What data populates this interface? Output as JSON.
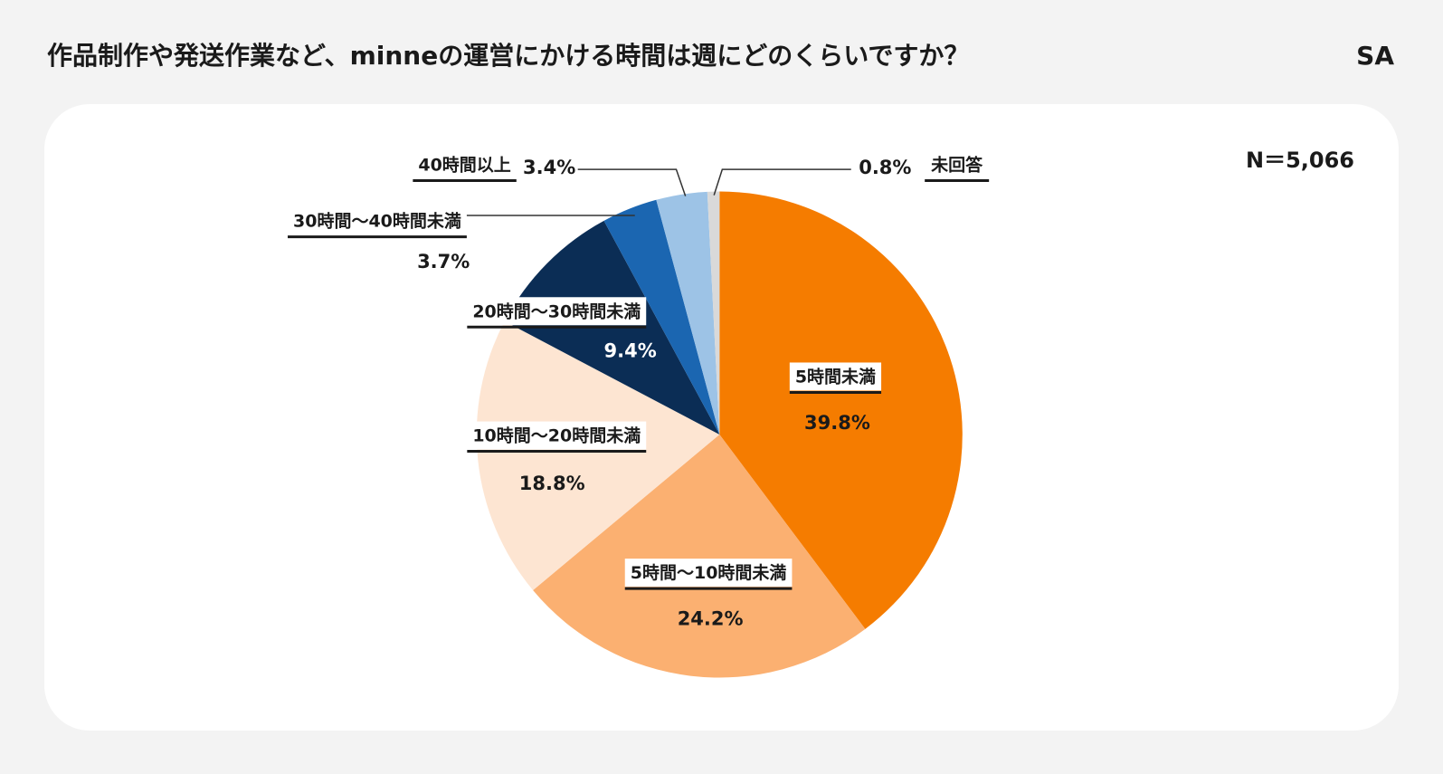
{
  "chart_data": {
    "type": "pie",
    "title": "作品制作や発送作業など、minneの運営にかける時間は週にどのくらいですか？",
    "tag": "SA",
    "note": "N＝5,066",
    "categories": [
      "5時間未満",
      "5時間～10時間未満",
      "10時間～20時間未満",
      "20時間～30時間未満",
      "30時間～40時間未満",
      "40時間以上",
      "未回答"
    ],
    "values": [
      39.8,
      24.2,
      18.8,
      9.4,
      3.7,
      3.4,
      0.8
    ],
    "value_labels": [
      "39.8%",
      "24.2%",
      "18.8%",
      "9.4%",
      "3.7%",
      "3.4%",
      "0.8%"
    ],
    "colors": [
      "#f57c00",
      "#fbb071",
      "#fde5d2",
      "#0b2d55",
      "#1b66b1",
      "#9dc3e6",
      "#d9d9d9"
    ]
  }
}
